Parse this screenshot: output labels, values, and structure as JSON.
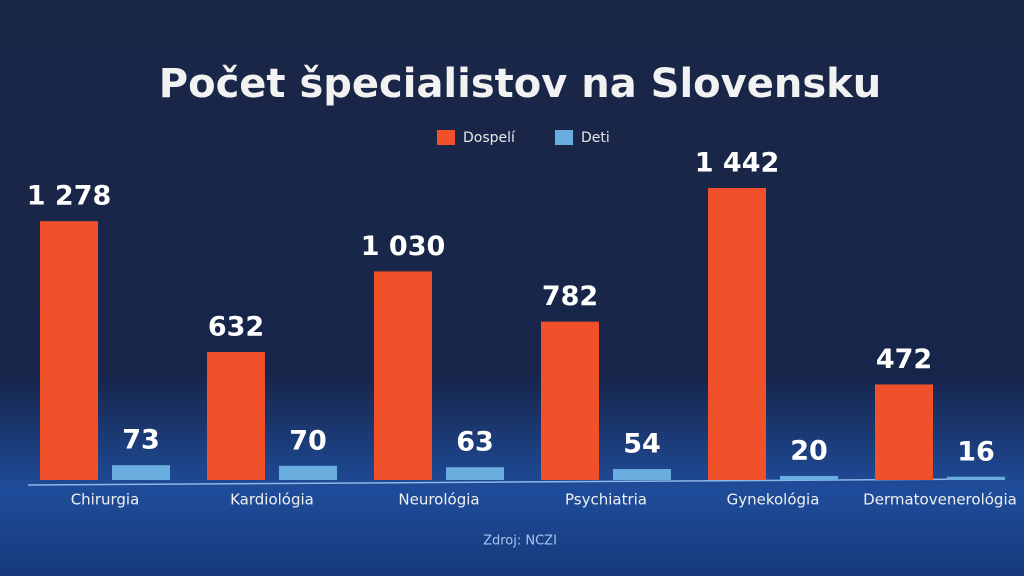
{
  "chart_data": {
    "type": "bar",
    "title": "Počet špecialistov na Slovensku",
    "categories": [
      "Chirurgia",
      "Kardiológia",
      "Neurológia",
      "Psychiatria",
      "Gynekológia",
      "Dermatovenerológia"
    ],
    "series": [
      {
        "name": "Dospelí",
        "color": "#f0502a",
        "values": [
          1278,
          632,
          1030,
          782,
          1442,
          472
        ],
        "value_labels": [
          "1 278",
          "632",
          "1 030",
          "782",
          "1 442",
          "472"
        ]
      },
      {
        "name": "Deti",
        "color": "#6aaee0",
        "values": [
          73,
          70,
          63,
          54,
          20,
          16
        ],
        "value_labels": [
          "73",
          "70",
          "63",
          "54",
          "20",
          "16"
        ]
      }
    ],
    "legend": "top",
    "source": "Zdroj: NCZI"
  }
}
